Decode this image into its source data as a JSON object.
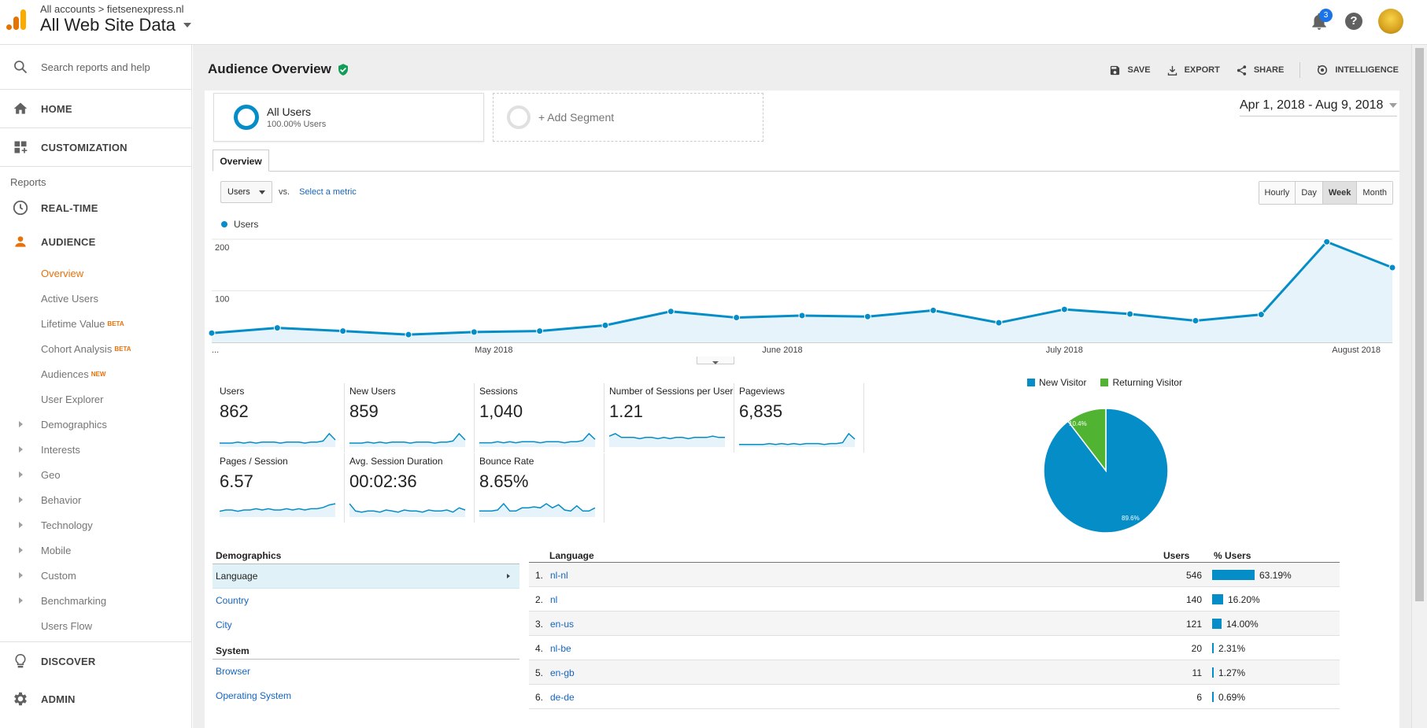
{
  "topbar": {
    "breadcrumb": "All accounts > fietsenexpress.nl",
    "view_name": "All Web Site Data",
    "notification_count": "3",
    "help_label": "?"
  },
  "sidebar": {
    "search_placeholder": "Search reports and help",
    "home": "HOME",
    "customization": "CUSTOMIZATION",
    "reports_label": "Reports",
    "realtime": "REAL-TIME",
    "audience": "AUDIENCE",
    "audience_items": [
      {
        "label": "Overview",
        "tag": ""
      },
      {
        "label": "Active Users",
        "tag": ""
      },
      {
        "label": "Lifetime Value",
        "tag": "BETA"
      },
      {
        "label": "Cohort Analysis",
        "tag": "BETA"
      },
      {
        "label": "Audiences",
        "tag": "NEW"
      },
      {
        "label": "User Explorer",
        "tag": ""
      }
    ],
    "expandable_items": [
      "Demographics",
      "Interests",
      "Geo",
      "Behavior",
      "Technology",
      "Mobile",
      "Custom",
      "Benchmarking"
    ],
    "users_flow": "Users Flow",
    "discover": "DISCOVER",
    "admin": "ADMIN"
  },
  "header": {
    "title": "Audience Overview",
    "actions": {
      "save": "SAVE",
      "export": "EXPORT",
      "share": "SHARE",
      "intelligence": "INTELLIGENCE"
    }
  },
  "segments": {
    "active_name": "All Users",
    "active_pct": "100.00% Users",
    "add_label": "+ Add Segment"
  },
  "date_range": "Apr 1, 2018 - Aug 9, 2018",
  "tabs": {
    "overview": "Overview"
  },
  "metric_selector": {
    "selected": "Users",
    "vs": "vs.",
    "select_link": "Select a metric"
  },
  "granularity": {
    "options": [
      "Hourly",
      "Day",
      "Week",
      "Month"
    ],
    "selected": "Week"
  },
  "colors": {
    "primary": "#058dc7",
    "secondary": "#50b432",
    "accent": "#e8710a",
    "link": "#1565c0"
  },
  "chart_data": {
    "type": "area",
    "series": [
      {
        "name": "Users",
        "values": [
          18,
          28,
          22,
          15,
          20,
          22,
          33,
          60,
          48,
          52,
          50,
          62,
          38,
          64,
          55,
          42,
          54,
          195,
          145
        ]
      }
    ],
    "ylim": [
      0,
      200
    ],
    "yticks": [
      "200",
      "100"
    ],
    "x_labels": [
      {
        "label": "...",
        "index": 0
      },
      {
        "label": "May 2018",
        "index": 4.3
      },
      {
        "label": "June 2018",
        "index": 8.7
      },
      {
        "label": "July 2018",
        "index": 13.0
      },
      {
        "label": "August 2018",
        "index": 17.45
      }
    ]
  },
  "kpis": [
    {
      "label": "Users",
      "value": "862",
      "spark": [
        3,
        3,
        3,
        4,
        3,
        4,
        3,
        4,
        4,
        4,
        3,
        4,
        4,
        4,
        3,
        4,
        4,
        5,
        12,
        6
      ]
    },
    {
      "label": "New Users",
      "value": "859",
      "spark": [
        3,
        3,
        3,
        4,
        3,
        4,
        3,
        4,
        4,
        4,
        3,
        4,
        4,
        4,
        3,
        4,
        4,
        5,
        12,
        6
      ]
    },
    {
      "label": "Sessions",
      "value": "1,040",
      "spark": [
        3,
        3,
        3,
        4,
        3,
        4,
        3,
        4,
        4,
        4,
        3,
        4,
        4,
        4,
        3,
        4,
        4,
        5,
        11,
        6
      ]
    },
    {
      "label": "Number of Sessions per User",
      "value": "1.21",
      "spark": [
        8,
        10,
        7,
        7,
        7,
        6,
        7,
        7,
        6,
        7,
        6,
        7,
        7,
        6,
        7,
        7,
        7,
        8,
        7,
        7
      ]
    },
    {
      "label": "Pageviews",
      "value": "6,835",
      "spark": [
        2,
        2,
        2,
        2,
        2,
        3,
        2,
        3,
        2,
        3,
        2,
        3,
        3,
        3,
        2,
        3,
        3,
        4,
        14,
        8
      ]
    },
    {
      "label": "Pages / Session",
      "value": "6.57",
      "spark": [
        4,
        5,
        5,
        4,
        5,
        5,
        6,
        5,
        6,
        5,
        5,
        6,
        5,
        6,
        5,
        6,
        6,
        7,
        9,
        10
      ]
    },
    {
      "label": "Avg. Session Duration",
      "value": "00:02:36",
      "spark": [
        12,
        5,
        4,
        5,
        5,
        4,
        6,
        5,
        4,
        6,
        5,
        5,
        4,
        6,
        5,
        5,
        6,
        4,
        8,
        6
      ]
    },
    {
      "label": "Bounce Rate",
      "value": "8.65%",
      "spark": [
        5,
        5,
        5,
        6,
        12,
        5,
        5,
        8,
        8,
        9,
        8,
        12,
        8,
        11,
        6,
        5,
        10,
        5,
        5,
        8
      ]
    }
  ],
  "visitor_pie": {
    "legend": [
      {
        "name": "New Visitor",
        "color": "#058dc7"
      },
      {
        "name": "Returning Visitor",
        "color": "#50b432"
      }
    ],
    "new_pct": 89.6,
    "new_label": "89.6%",
    "returning_label": "10.4%"
  },
  "demographics": {
    "heading": "Demographics",
    "items": [
      "Language",
      "Country",
      "City"
    ],
    "system_heading": "System",
    "system_items": [
      "Browser",
      "Operating System"
    ]
  },
  "language_table": {
    "col_language": "Language",
    "col_users": "Users",
    "col_pct": "% Users",
    "rows": [
      {
        "rank": "1.",
        "lang": "nl-nl",
        "users": "546",
        "pct": "63.19%",
        "frac": 0.6319
      },
      {
        "rank": "2.",
        "lang": "nl",
        "users": "140",
        "pct": "16.20%",
        "frac": 0.162
      },
      {
        "rank": "3.",
        "lang": "en-us",
        "users": "121",
        "pct": "14.00%",
        "frac": 0.14
      },
      {
        "rank": "4.",
        "lang": "nl-be",
        "users": "20",
        "pct": "2.31%",
        "frac": 0.0231
      },
      {
        "rank": "5.",
        "lang": "en-gb",
        "users": "11",
        "pct": "1.27%",
        "frac": 0.0127
      },
      {
        "rank": "6.",
        "lang": "de-de",
        "users": "6",
        "pct": "0.69%",
        "frac": 0.0069
      }
    ]
  }
}
